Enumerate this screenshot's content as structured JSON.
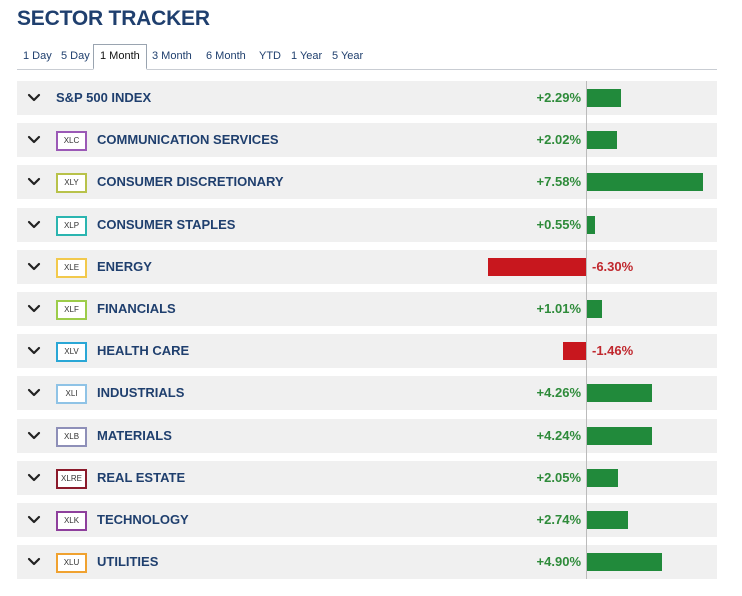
{
  "header": {
    "title": "SECTOR TRACKER"
  },
  "tabs": [
    {
      "label": "1 Day",
      "active": false
    },
    {
      "label": "5 Day",
      "active": false
    },
    {
      "label": "1 Month",
      "active": true
    },
    {
      "label": "3 Month",
      "active": false
    },
    {
      "label": "6 Month",
      "active": false
    },
    {
      "label": "YTD",
      "active": false
    },
    {
      "label": "1 Year",
      "active": false
    },
    {
      "label": "5 Year",
      "active": false
    }
  ],
  "colors": {
    "positive_bar": "#218a3b",
    "negative_bar": "#c8171e",
    "positive_text": "#2e8b3a",
    "negative_text": "#c0272d",
    "title": "#1f3f6e",
    "row_background": "#f0f0f0"
  },
  "chart_data": {
    "type": "bar",
    "orientation": "horizontal",
    "unit": "%",
    "xlim": [
      -7,
      8
    ],
    "grid": false,
    "categories": [
      "S&P 500 INDEX",
      "COMMUNICATION SERVICES",
      "CONSUMER DISCRETIONARY",
      "CONSUMER STAPLES",
      "ENERGY",
      "FINANCIALS",
      "HEALTH CARE",
      "INDUSTRIALS",
      "MATERIALS",
      "REAL ESTATE",
      "TECHNOLOGY",
      "UTILITIES"
    ],
    "rows": [
      {
        "name": "S&P 500 INDEX",
        "ticker": "",
        "ticker_color": "",
        "value": 2.29,
        "label": "+2.29%"
      },
      {
        "name": "COMMUNICATION SERVICES",
        "ticker": "XLC",
        "ticker_color": "#9b59b6",
        "value": 2.02,
        "label": "+2.02%"
      },
      {
        "name": "CONSUMER DISCRETIONARY",
        "ticker": "XLY",
        "ticker_color": "#b8c24a",
        "value": 7.58,
        "label": "+7.58%"
      },
      {
        "name": "CONSUMER STAPLES",
        "ticker": "XLP",
        "ticker_color": "#2bb5b0",
        "value": 0.55,
        "label": "+0.55%"
      },
      {
        "name": "ENERGY",
        "ticker": "XLE",
        "ticker_color": "#f2c94c",
        "value": -6.3,
        "label": "-6.30%"
      },
      {
        "name": "FINANCIALS",
        "ticker": "XLF",
        "ticker_color": "#9ccc4a",
        "value": 1.01,
        "label": "+1.01%"
      },
      {
        "name": "HEALTH CARE",
        "ticker": "XLV",
        "ticker_color": "#2aa7d6",
        "value": -1.46,
        "label": "-1.46%"
      },
      {
        "name": "INDUSTRIALS",
        "ticker": "XLI",
        "ticker_color": "#8fc3e6",
        "value": 4.26,
        "label": "+4.26%"
      },
      {
        "name": "MATERIALS",
        "ticker": "XLB",
        "ticker_color": "#8e8fb8",
        "value": 4.24,
        "label": "+4.24%"
      },
      {
        "name": "REAL ESTATE",
        "ticker": "XLRE",
        "ticker_color": "#8b1a2b",
        "value": 2.05,
        "label": "+2.05%"
      },
      {
        "name": "TECHNOLOGY",
        "ticker": "XLK",
        "ticker_color": "#8e3f9c",
        "value": 2.74,
        "label": "+2.74%"
      },
      {
        "name": "UTILITIES",
        "ticker": "XLU",
        "ticker_color": "#f0a230",
        "value": 4.9,
        "label": "+4.90%"
      }
    ]
  }
}
